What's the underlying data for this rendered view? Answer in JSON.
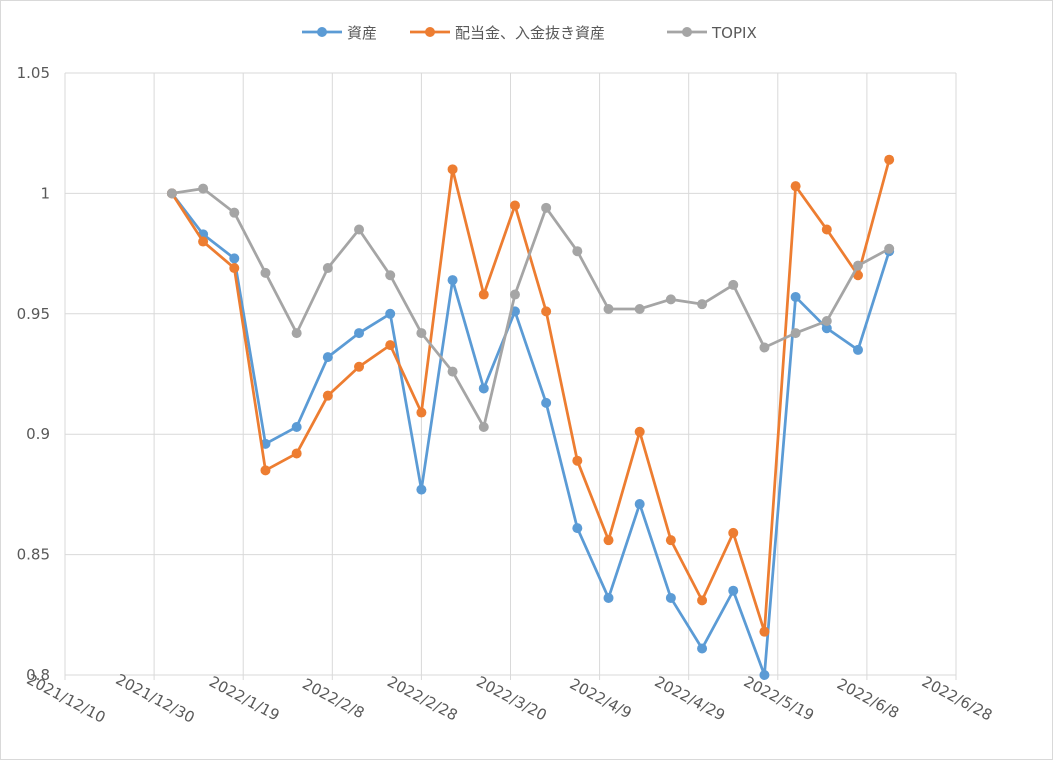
{
  "chart_data": {
    "type": "line",
    "title": "",
    "xlabel": "",
    "ylabel": "",
    "x_axis": {
      "type": "date",
      "min": "2021-12-10",
      "max": "2022-06-28",
      "tick_labels": [
        "2021/12/10",
        "2021/12/30",
        "2022/1/19",
        "2022/2/8",
        "2022/2/28",
        "2022/3/20",
        "2022/4/9",
        "2022/4/29",
        "2022/5/19",
        "2022/6/8",
        "2022/6/28"
      ]
    },
    "y_axis": {
      "min": 0.8,
      "max": 1.05,
      "tick_labels": [
        "0.8",
        "0.85",
        "0.9",
        "0.95",
        "1",
        "1.05"
      ]
    },
    "grid": true,
    "legend_position": "top",
    "x": [
      "2022-01-03",
      "2022-01-10",
      "2022-01-17",
      "2022-01-24",
      "2022-01-31",
      "2022-02-07",
      "2022-02-14",
      "2022-02-21",
      "2022-02-28",
      "2022-03-07",
      "2022-03-14",
      "2022-03-21",
      "2022-03-28",
      "2022-04-04",
      "2022-04-11",
      "2022-04-18",
      "2022-04-25",
      "2022-05-02",
      "2022-05-09",
      "2022-05-16",
      "2022-05-23",
      "2022-05-30",
      "2022-06-06",
      "2022-06-13"
    ],
    "series": [
      {
        "name": "資産",
        "color": "#5b9bd5",
        "values": [
          1.0,
          0.983,
          0.973,
          0.896,
          0.903,
          0.932,
          0.942,
          0.95,
          0.877,
          0.964,
          0.919,
          0.951,
          0.913,
          0.861,
          0.832,
          0.871,
          0.832,
          0.811,
          0.835,
          0.8,
          0.957,
          0.944,
          0.935,
          0.976
        ]
      },
      {
        "name": "配当金、入金抜き資産",
        "color": "#ed7d31",
        "values": [
          1.0,
          0.98,
          0.969,
          0.885,
          0.892,
          0.916,
          0.928,
          0.937,
          0.909,
          1.01,
          0.958,
          0.995,
          0.951,
          0.889,
          0.856,
          0.901,
          0.856,
          0.831,
          0.859,
          0.818,
          1.003,
          0.985,
          0.966,
          1.014
        ]
      },
      {
        "name": "TOPIX",
        "color": "#a5a5a5",
        "values": [
          1.0,
          1.002,
          0.992,
          0.967,
          0.942,
          0.969,
          0.985,
          0.966,
          0.942,
          0.926,
          0.903,
          0.958,
          0.994,
          0.976,
          0.952,
          0.952,
          0.956,
          0.954,
          0.962,
          0.936,
          0.942,
          0.947,
          0.97,
          0.977
        ]
      }
    ]
  }
}
